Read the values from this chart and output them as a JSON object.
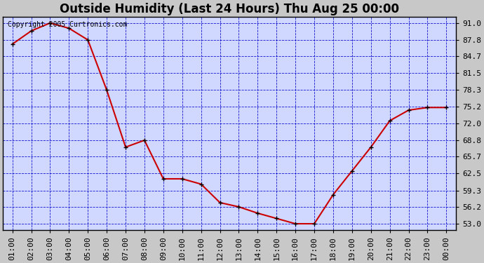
{
  "title": "Outside Humidity (Last 24 Hours) Thu Aug 25 00:00",
  "copyright": "Copyright 2005 Curtronics.com",
  "x_labels": [
    "01:00",
    "02:00",
    "03:00",
    "04:00",
    "05:00",
    "06:00",
    "07:00",
    "08:00",
    "09:00",
    "10:00",
    "11:00",
    "12:00",
    "13:00",
    "14:00",
    "15:00",
    "16:00",
    "17:00",
    "18:00",
    "19:00",
    "20:00",
    "21:00",
    "22:00",
    "23:00",
    "00:00"
  ],
  "x_values": [
    1,
    2,
    3,
    4,
    5,
    6,
    7,
    8,
    9,
    10,
    11,
    12,
    13,
    14,
    15,
    16,
    17,
    18,
    19,
    20,
    21,
    22,
    23,
    24
  ],
  "y_values": [
    87.0,
    89.5,
    91.0,
    90.0,
    87.8,
    78.3,
    67.5,
    68.8,
    61.5,
    61.5,
    60.5,
    57.0,
    56.2,
    55.0,
    54.0,
    53.0,
    53.0,
    58.5,
    63.0,
    67.5,
    72.5,
    74.5,
    75.0,
    75.0
  ],
  "ylim": [
    51.8,
    92.2
  ],
  "yticks": [
    53.0,
    56.2,
    59.3,
    62.5,
    65.7,
    68.8,
    72.0,
    75.2,
    78.3,
    81.5,
    84.7,
    87.8,
    91.0
  ],
  "line_color": "#cc0000",
  "marker_color": "#000000",
  "plot_bg_color": "#d0d8ff",
  "grid_color": "#0000cc",
  "title_fontsize": 12,
  "tick_fontsize": 8,
  "copyright_fontsize": 7
}
